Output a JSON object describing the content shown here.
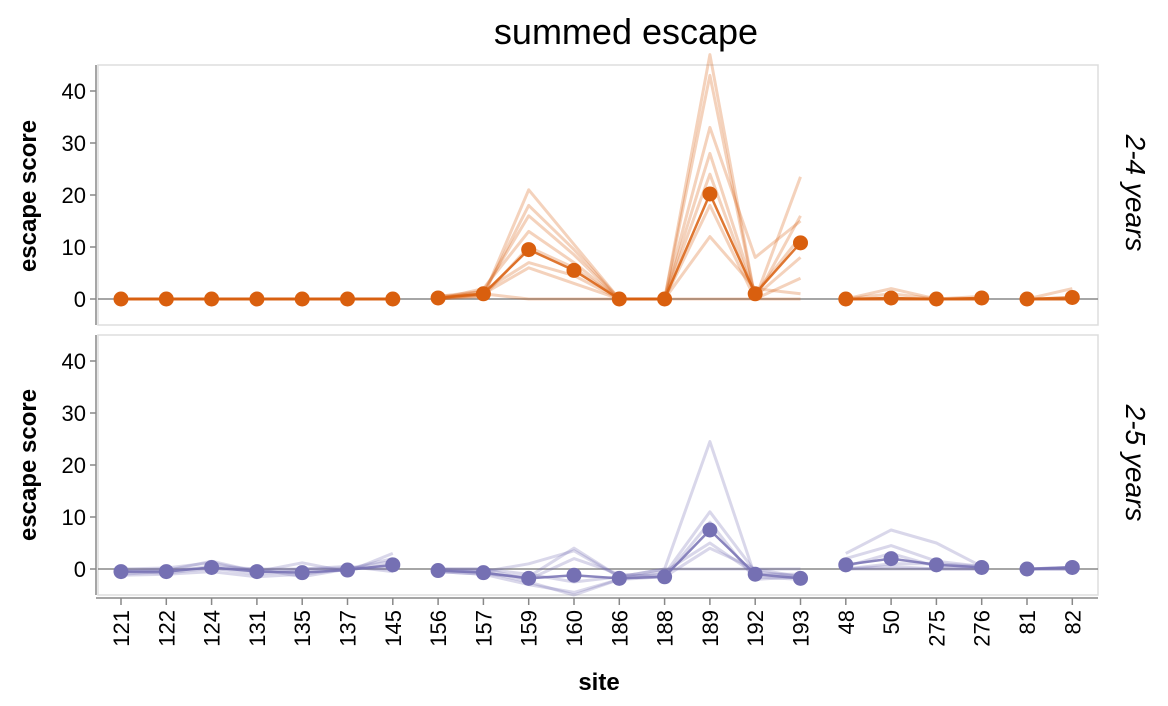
{
  "chart_data": {
    "type": "line",
    "title": "summed escape",
    "xlabel": "site",
    "ylabel": "escape score",
    "ylim": [
      -5,
      45
    ],
    "yticks": [
      0,
      10,
      20,
      30,
      40
    ],
    "grid": false,
    "categories": [
      "121",
      "122",
      "124",
      "131",
      "135",
      "137",
      "145",
      "156",
      "157",
      "159",
      "160",
      "186",
      "188",
      "189",
      "192",
      "193",
      "48",
      "50",
      "275",
      "276",
      "81",
      "82"
    ],
    "facets": [
      {
        "label": "2-4 years",
        "color": "#d95f0e",
        "segments": [
          [
            0,
            6
          ],
          [
            7,
            15
          ],
          [
            16,
            19
          ],
          [
            20,
            21
          ]
        ],
        "mean": [
          0,
          0,
          0,
          0,
          0,
          0,
          0,
          0.2,
          1,
          9.5,
          5.5,
          0,
          0,
          20.2,
          1,
          10.8,
          0,
          0.2,
          0,
          0.2,
          0,
          0.3
        ],
        "lines": [
          [
            0,
            0,
            0,
            0,
            0,
            0,
            0,
            0,
            0.5,
            21,
            10.5,
            0,
            0,
            47,
            0,
            23.5,
            0,
            0,
            0,
            0,
            0,
            0
          ],
          [
            0,
            0,
            0,
            0,
            0,
            0,
            0,
            0,
            0.8,
            18,
            9.5,
            0,
            0,
            43,
            0,
            16,
            0,
            2,
            0,
            0,
            0,
            0
          ],
          [
            0,
            0,
            0,
            0,
            0,
            0,
            0,
            0.5,
            1.5,
            16,
            8.5,
            0,
            0,
            33,
            8,
            15,
            0,
            1,
            0,
            0,
            0,
            2
          ],
          [
            0,
            0,
            0,
            0,
            0,
            0,
            0,
            0,
            2,
            13,
            7,
            0,
            0,
            28,
            1,
            12,
            0,
            0,
            0,
            0.5,
            0,
            0
          ],
          [
            0,
            0,
            0,
            0,
            0,
            0,
            0,
            0.5,
            0.5,
            10,
            6,
            0,
            0,
            24,
            0.5,
            8,
            0,
            0,
            0,
            0,
            0,
            0
          ],
          [
            0,
            0,
            0,
            0,
            0,
            0,
            0,
            0,
            1.5,
            7,
            4.5,
            0,
            0,
            18,
            0,
            4,
            0,
            0,
            0,
            0,
            0,
            0
          ],
          [
            0,
            0,
            0,
            0,
            0,
            0,
            0,
            0,
            1,
            6,
            3,
            0,
            0,
            12,
            2,
            1,
            0,
            0,
            0,
            0,
            0,
            0
          ],
          [
            0,
            0,
            0,
            0,
            0,
            0,
            0,
            0.5,
            1,
            0,
            0,
            0,
            0,
            0,
            0,
            0,
            0,
            0,
            0,
            0,
            0,
            0
          ]
        ]
      },
      {
        "label": "2-5 years",
        "color": "#7570b3",
        "segments": [
          [
            0,
            6
          ],
          [
            7,
            15
          ],
          [
            16,
            19
          ],
          [
            20,
            21
          ]
        ],
        "mean": [
          -0.5,
          -0.5,
          0.3,
          -0.5,
          -0.7,
          -0.2,
          0.8,
          -0.3,
          -0.7,
          -1.8,
          -1.2,
          -1.8,
          -1.5,
          7.5,
          -1,
          -1.8,
          0.8,
          2,
          0.8,
          0.3,
          0,
          0.3
        ],
        "lines": [
          [
            -0.5,
            -0.3,
            1.5,
            -0.5,
            1.2,
            -0.5,
            3,
            0,
            -0.5,
            1,
            3.5,
            -1.5,
            0,
            24.5,
            -1.5,
            -2,
            3,
            7.5,
            5,
            0.5,
            0,
            0.3
          ],
          [
            -1,
            -0.5,
            0.5,
            0,
            -1.5,
            0,
            2,
            -0.5,
            -1,
            -1.5,
            4,
            -1.5,
            -1,
            11,
            -0.5,
            -1.5,
            2,
            4.5,
            1.5,
            0.5,
            0,
            0.3
          ],
          [
            0,
            0.2,
            1.2,
            -0.5,
            0,
            0.2,
            0,
            0,
            0,
            -2,
            2,
            -1,
            -1.5,
            9,
            -2,
            -1.5,
            0.5,
            3,
            0.5,
            0,
            0,
            0
          ],
          [
            -1.2,
            -1,
            -0.5,
            -1.5,
            -1,
            0,
            1.5,
            -0.5,
            -1,
            -3,
            -4.5,
            -2,
            -0.5,
            5,
            -1,
            -1,
            0,
            1,
            1,
            0.5,
            0,
            0.3
          ],
          [
            -0.3,
            0,
            0,
            0,
            0,
            0.5,
            -0.5,
            -0.3,
            -0.5,
            -2.5,
            -5,
            -2,
            -1.5,
            4,
            0,
            -1.5,
            0,
            0.5,
            0,
            0,
            0,
            0
          ],
          [
            -0.5,
            -0.8,
            0.2,
            -1,
            -0.3,
            0,
            0.5,
            0,
            0,
            -1,
            -2.5,
            -1.5,
            0,
            0,
            0,
            0,
            0,
            0,
            0,
            0,
            0,
            0
          ]
        ]
      }
    ]
  }
}
